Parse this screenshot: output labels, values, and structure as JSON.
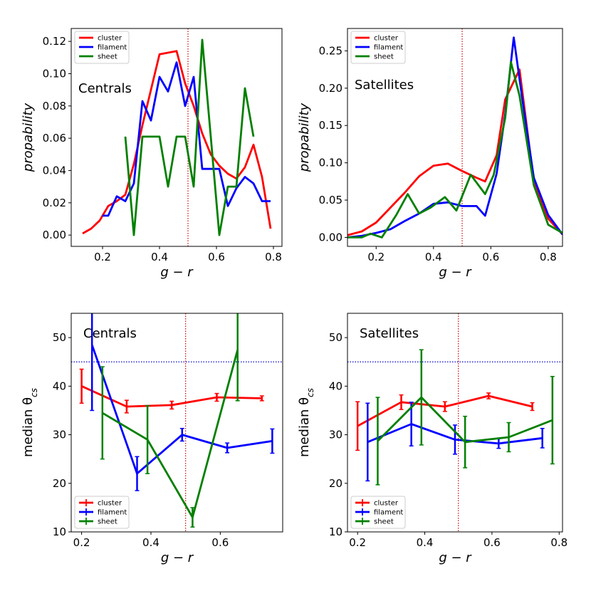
{
  "colors": {
    "cluster": "#ff0000",
    "filament": "#0000ff",
    "sheet": "#008000",
    "red_line": "#cc0000",
    "blue_line": "#0000cc"
  },
  "chart_data": [
    {
      "type": "line",
      "title": "Centrals",
      "xlabel": "g − r",
      "ylabel": "propability",
      "xlim": [
        0.09,
        0.83
      ],
      "ylim": [
        -0.007,
        0.128
      ],
      "xticks": [
        0.2,
        0.4,
        0.6,
        0.8
      ],
      "xticklabels": [
        "0.2",
        "0.4",
        "0.6",
        "0.8"
      ],
      "yticks": [
        0.0,
        0.02,
        0.04,
        0.06,
        0.08,
        0.1,
        0.12
      ],
      "yticklabels": [
        "0.00",
        "0.02",
        "0.04",
        "0.06",
        "0.08",
        "0.10",
        "0.12"
      ],
      "vline": 0.5,
      "legend": [
        "cluster",
        "filament",
        "sheet"
      ],
      "legend_loc": "upper-left",
      "series": [
        {
          "name": "cluster",
          "x": [
            0.13,
            0.16,
            0.19,
            0.22,
            0.25,
            0.28,
            0.31,
            0.34,
            0.37,
            0.4,
            0.43,
            0.46,
            0.49,
            0.52,
            0.55,
            0.58,
            0.61,
            0.64,
            0.67,
            0.7,
            0.73,
            0.76,
            0.79
          ],
          "y": [
            0.001,
            0.004,
            0.009,
            0.018,
            0.021,
            0.025,
            0.044,
            0.068,
            0.09,
            0.112,
            0.113,
            0.114,
            0.094,
            0.08,
            0.063,
            0.05,
            0.043,
            0.038,
            0.035,
            0.042,
            0.056,
            0.036,
            0.004
          ]
        },
        {
          "name": "filament",
          "x": [
            0.2,
            0.22,
            0.25,
            0.28,
            0.31,
            0.34,
            0.37,
            0.4,
            0.43,
            0.46,
            0.49,
            0.52,
            0.55,
            0.58,
            0.61,
            0.64,
            0.67,
            0.7,
            0.73,
            0.76,
            0.79
          ],
          "y": [
            0.012,
            0.012,
            0.024,
            0.021,
            0.032,
            0.083,
            0.071,
            0.098,
            0.089,
            0.107,
            0.08,
            0.098,
            0.041,
            0.041,
            0.041,
            0.018,
            0.029,
            0.036,
            0.032,
            0.021,
            0.021
          ]
        },
        {
          "name": "sheet",
          "x": [
            0.28,
            0.31,
            0.34,
            0.37,
            0.4,
            0.43,
            0.46,
            0.49,
            0.52,
            0.55,
            0.58,
            0.61,
            0.64,
            0.67,
            0.7,
            0.73
          ],
          "y": [
            0.061,
            0.0,
            0.061,
            0.061,
            0.061,
            0.03,
            0.061,
            0.061,
            0.03,
            0.121,
            0.061,
            0.0,
            0.03,
            0.03,
            0.091,
            0.061
          ]
        }
      ]
    },
    {
      "type": "line",
      "title": "Satellites",
      "xlabel": "g − r",
      "ylabel": "propability",
      "xlim": [
        0.1,
        0.85
      ],
      "ylim": [
        -0.012,
        0.28
      ],
      "xticks": [
        0.2,
        0.4,
        0.6,
        0.8
      ],
      "xticklabels": [
        "0.2",
        "0.4",
        "0.6",
        "0.8"
      ],
      "yticks": [
        0.0,
        0.05,
        0.1,
        0.15,
        0.2,
        0.25
      ],
      "yticklabels": [
        "0.00",
        "0.05",
        "0.10",
        "0.15",
        "0.20",
        "0.25"
      ],
      "vline": 0.5,
      "legend": [
        "cluster",
        "filament",
        "sheet"
      ],
      "legend_loc": "upper-left",
      "series": [
        {
          "name": "cluster",
          "x": [
            0.1,
            0.15,
            0.2,
            0.25,
            0.3,
            0.35,
            0.4,
            0.45,
            0.5,
            0.55,
            0.58,
            0.62,
            0.65,
            0.7,
            0.75,
            0.8,
            0.85
          ],
          "y": [
            0.003,
            0.008,
            0.02,
            0.04,
            0.06,
            0.082,
            0.096,
            0.099,
            0.089,
            0.08,
            0.075,
            0.11,
            0.185,
            0.225,
            0.075,
            0.025,
            0.004
          ]
        },
        {
          "name": "filament",
          "x": [
            0.1,
            0.15,
            0.2,
            0.25,
            0.3,
            0.35,
            0.4,
            0.45,
            0.5,
            0.55,
            0.58,
            0.62,
            0.65,
            0.68,
            0.71,
            0.75,
            0.8,
            0.85
          ],
          "y": [
            0.0,
            0.002,
            0.006,
            0.011,
            0.022,
            0.032,
            0.045,
            0.047,
            0.042,
            0.042,
            0.029,
            0.085,
            0.165,
            0.268,
            0.185,
            0.08,
            0.03,
            0.004
          ]
        },
        {
          "name": "sheet",
          "x": [
            0.1,
            0.15,
            0.18,
            0.22,
            0.27,
            0.31,
            0.35,
            0.39,
            0.44,
            0.48,
            0.53,
            0.58,
            0.61,
            0.65,
            0.67,
            0.7,
            0.75,
            0.8,
            0.85
          ],
          "y": [
            0.0,
            0.0,
            0.005,
            0.0,
            0.03,
            0.058,
            0.032,
            0.04,
            0.054,
            0.036,
            0.084,
            0.058,
            0.084,
            0.16,
            0.235,
            0.19,
            0.07,
            0.017,
            0.006
          ]
        }
      ]
    },
    {
      "type": "line",
      "title": "Centrals",
      "xlabel": "g − r",
      "ylabel": "median θ",
      "ylabel_sub": "cs",
      "xlim": [
        0.17,
        0.78
      ],
      "ylim": [
        10,
        55
      ],
      "xticks": [
        0.2,
        0.4,
        0.6
      ],
      "xticklabels": [
        "0.2",
        "0.4",
        "0.6"
      ],
      "yticks": [
        10,
        20,
        30,
        40,
        50
      ],
      "yticklabels": [
        "10",
        "20",
        "30",
        "40",
        "50"
      ],
      "vline": 0.5,
      "hline": 45,
      "legend": [
        "cluster",
        "filament",
        "sheet"
      ],
      "legend_loc": "lower-left",
      "series": [
        {
          "name": "cluster",
          "x": [
            0.2,
            0.33,
            0.46,
            0.59,
            0.72
          ],
          "y": [
            40.0,
            35.8,
            36.1,
            37.7,
            37.5
          ],
          "err": [
            3.5,
            1.3,
            0.8,
            0.8,
            0.5
          ]
        },
        {
          "name": "filament",
          "x": [
            0.23,
            0.36,
            0.49,
            0.62,
            0.75
          ],
          "y": [
            48.5,
            22.0,
            30.0,
            27.3,
            28.7
          ],
          "err": [
            13.5,
            3.5,
            1.3,
            1.0,
            2.5
          ]
        },
        {
          "name": "sheet",
          "x": [
            0.26,
            0.39,
            0.52,
            0.65
          ],
          "y": [
            34.5,
            29.0,
            13.0,
            47.5
          ],
          "err": [
            9.5,
            7.0,
            2.0,
            10.5
          ]
        }
      ]
    },
    {
      "type": "line",
      "title": "Satellites",
      "xlabel": "g − r",
      "ylabel": "median θ",
      "ylabel_sub": "cs",
      "xlim": [
        0.17,
        0.81
      ],
      "ylim": [
        10,
        55
      ],
      "xticks": [
        0.2,
        0.4,
        0.6,
        0.8
      ],
      "xticklabels": [
        "0.2",
        "0.4",
        "0.6",
        "0.8"
      ],
      "yticks": [
        10,
        20,
        30,
        40,
        50
      ],
      "yticklabels": [
        "10",
        "20",
        "30",
        "40",
        "50"
      ],
      "vline": 0.5,
      "hline": 45,
      "legend": [
        "cluster",
        "filament",
        "sheet"
      ],
      "legend_loc": "lower-left",
      "series": [
        {
          "name": "cluster",
          "x": [
            0.2,
            0.33,
            0.46,
            0.59,
            0.72
          ],
          "y": [
            31.8,
            36.7,
            35.8,
            38.0,
            35.8
          ],
          "err": [
            5.0,
            1.5,
            1.0,
            0.6,
            0.8
          ]
        },
        {
          "name": "filament",
          "x": [
            0.23,
            0.36,
            0.49,
            0.62,
            0.75
          ],
          "y": [
            28.5,
            32.2,
            29.0,
            28.2,
            29.3
          ],
          "err": [
            8.0,
            4.5,
            3.0,
            1.0,
            2.0
          ]
        },
        {
          "name": "sheet",
          "x": [
            0.26,
            0.39,
            0.52,
            0.65,
            0.78
          ],
          "y": [
            28.7,
            37.7,
            28.5,
            29.5,
            33.0
          ],
          "err": [
            9.0,
            9.8,
            5.3,
            3.0,
            9.0
          ]
        }
      ]
    }
  ]
}
